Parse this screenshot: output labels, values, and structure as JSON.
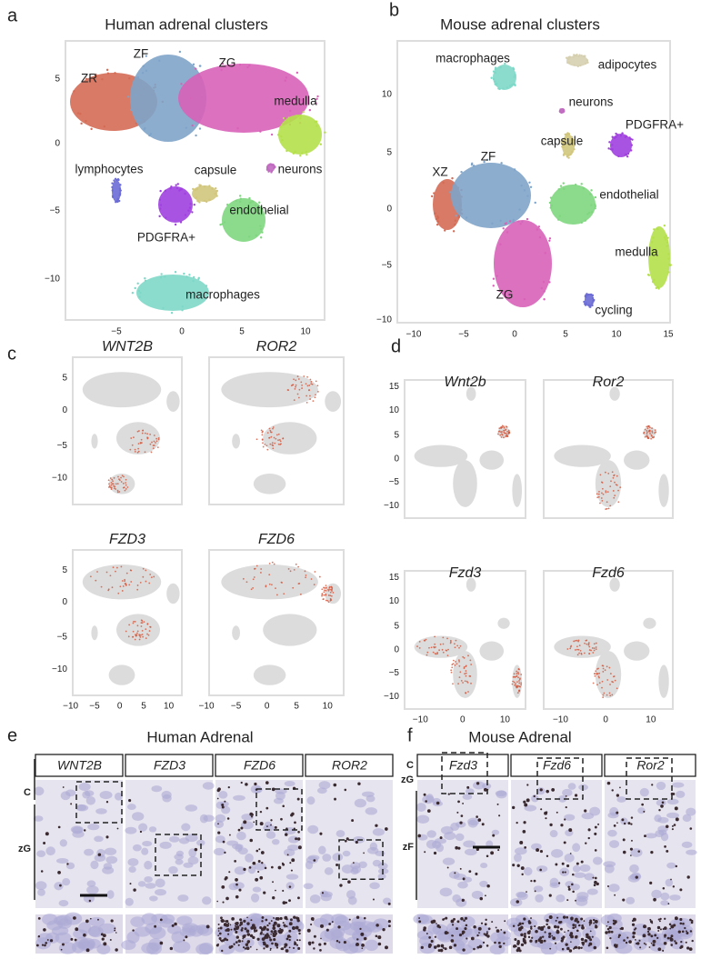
{
  "panel_a": {
    "letter": "a",
    "title": "Human adrenal clusters",
    "labels": [
      "ZR",
      "ZF",
      "ZG",
      "medulla",
      "lymphocytes",
      "neurons",
      "capsule",
      "endothelial",
      "PDGFRA+",
      "macrophages"
    ],
    "x_ticks": [
      "−5",
      "0",
      "5",
      "10"
    ],
    "y_ticks": [
      "5",
      "0",
      "−5",
      "−10"
    ]
  },
  "panel_b": {
    "letter": "b",
    "title": "Mouse adrenal clusters",
    "labels": [
      "macrophages",
      "adipocytes",
      "neurons",
      "PDGFRA+",
      "capsule",
      "XZ",
      "ZF",
      "endothelial",
      "medulla",
      "ZG",
      "cycling"
    ],
    "x_ticks": [
      "−10",
      "−5",
      "0",
      "5",
      "10",
      "15"
    ],
    "y_ticks": [
      "10",
      "5",
      "0",
      "−5",
      "−10"
    ]
  },
  "panel_c": {
    "letter": "c",
    "genes": [
      "WNT2B",
      "ROR2",
      "FZD3",
      "FZD6"
    ],
    "x_ticks": [
      "−10",
      "−5",
      "0",
      "5",
      "10"
    ],
    "y_ticks": [
      "5",
      "0",
      "−5",
      "−10"
    ]
  },
  "panel_d": {
    "letter": "d",
    "genes": [
      "Wnt2b",
      "Ror2",
      "Fzd3",
      "Fzd6"
    ],
    "x_ticks": [
      "−10",
      "0",
      "10"
    ],
    "y_ticks": [
      "15",
      "10",
      "5",
      "0",
      "−5",
      "−10"
    ]
  },
  "panel_e": {
    "letter": "e",
    "title": "Human Adrenal",
    "genes": [
      "WNT2B",
      "FZD3",
      "FZD6",
      "ROR2"
    ],
    "zone_labels": [
      "C",
      "zG"
    ]
  },
  "panel_f": {
    "letter": "f",
    "title": "Mouse Adrenal",
    "genes": [
      "Fzd3",
      "Fzd6",
      "Ror2"
    ],
    "zone_labels": [
      "C",
      "zG",
      "zF"
    ]
  }
}
